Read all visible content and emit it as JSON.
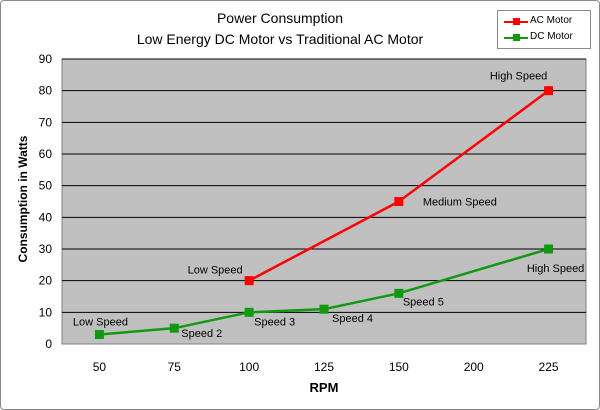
{
  "chart_data": {
    "type": "line",
    "title": "Power Consumption",
    "subtitle": "Low Energy DC Motor vs Traditional AC Motor",
    "xlabel": "RPM",
    "ylabel": "Consumption in Watts",
    "categories": [
      "50",
      "75",
      "100",
      "125",
      "150",
      "200",
      "225"
    ],
    "ylim": [
      0,
      90
    ],
    "yticks": [
      0,
      10,
      20,
      30,
      40,
      50,
      60,
      70,
      80,
      90
    ],
    "grid": true,
    "legend_position": "top-right",
    "series": [
      {
        "name": "AC Motor",
        "color": "#ff0000",
        "values": [
          null,
          null,
          20,
          null,
          45,
          null,
          80
        ],
        "labels": [
          null,
          null,
          "Low Speed",
          null,
          "Medium Speed",
          null,
          "High Speed"
        ]
      },
      {
        "name": "DC Motor",
        "color": "#119a11",
        "values": [
          3,
          5,
          10,
          11,
          16,
          null,
          30
        ],
        "labels": [
          "Low Speed",
          "Speed 2",
          "Speed 3",
          "Speed 4",
          "Speed 5",
          null,
          "High Speed"
        ]
      }
    ]
  }
}
